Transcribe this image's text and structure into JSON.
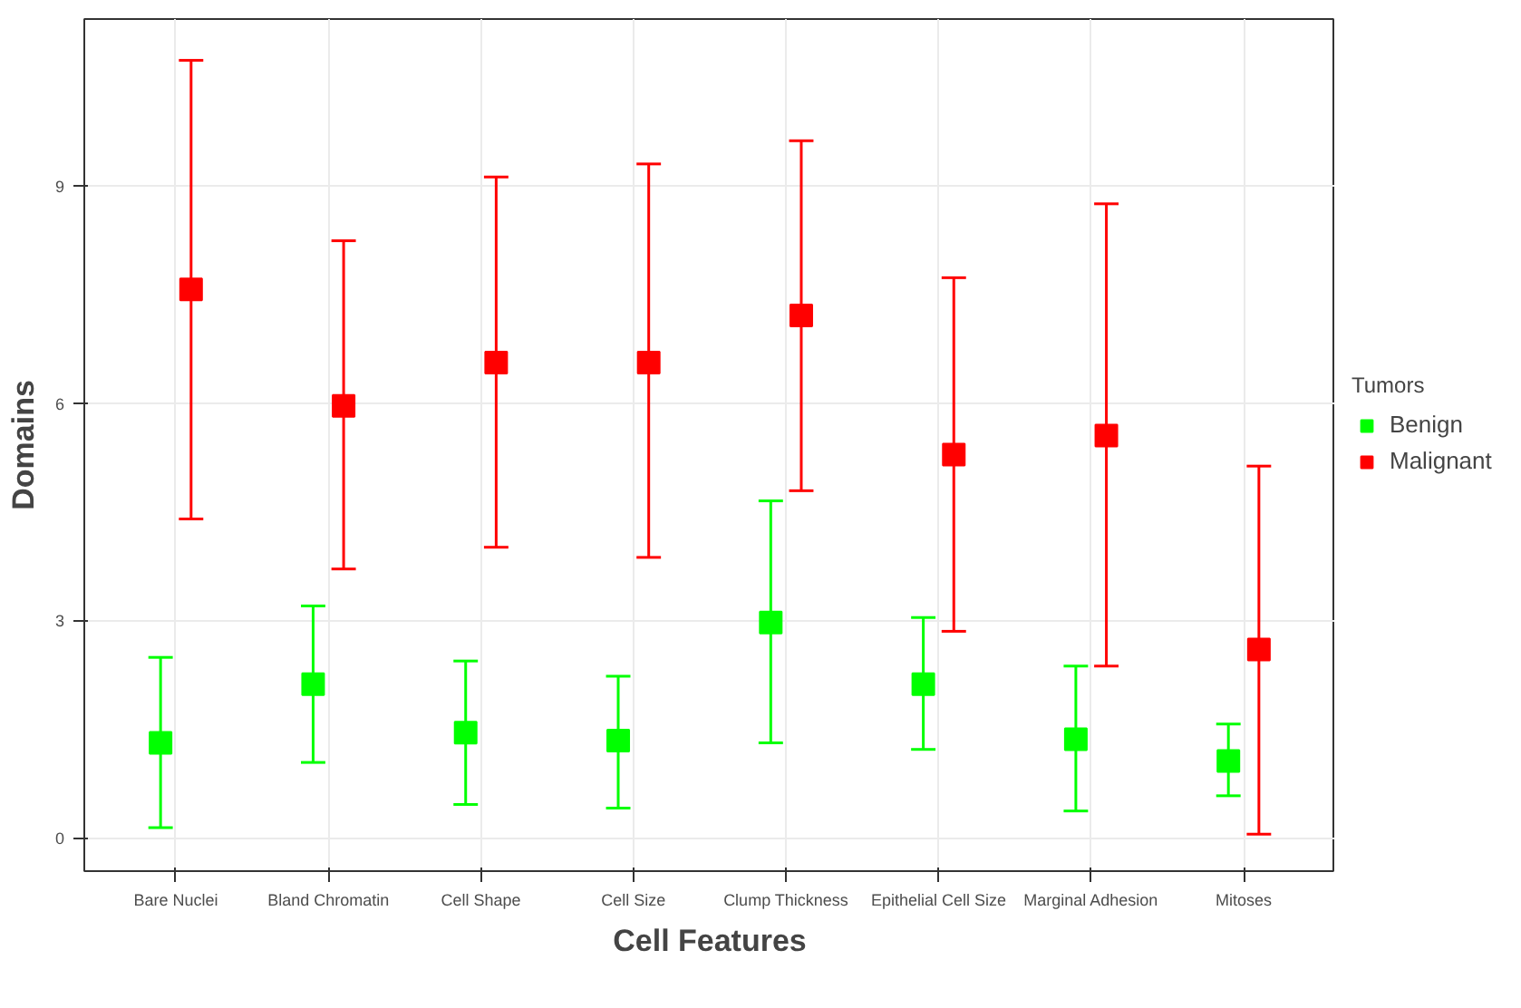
{
  "chart_data": {
    "type": "scatter",
    "xlabel": "Cell Features",
    "ylabel": "Domains",
    "legend_title": "Tumors",
    "categories": [
      "Bare Nuclei",
      "Bland Chromatin",
      "Cell Shape",
      "Cell Size",
      "Clump Thickness",
      "Epithelial Cell Size",
      "Marginal Adhesion",
      "Mitoses"
    ],
    "series": [
      {
        "name": "Benign",
        "color": "#00ff00",
        "values": [
          1.31,
          2.12,
          1.45,
          1.34,
          2.97,
          2.12,
          1.36,
          1.06
        ],
        "errors": [
          [
            0.14,
            2.49
          ],
          [
            1.04,
            3.2
          ],
          [
            0.46,
            2.44
          ],
          [
            0.41,
            2.23
          ],
          [
            1.31,
            4.65
          ],
          [
            1.22,
            3.04
          ],
          [
            0.37,
            2.37
          ],
          [
            0.58,
            1.57
          ]
        ]
      },
      {
        "name": "Malignant",
        "color": "#ff0000",
        "values": [
          7.57,
          5.96,
          6.56,
          6.56,
          7.21,
          5.29,
          5.55,
          2.6
        ],
        "errors": [
          [
            4.4,
            10.73
          ],
          [
            3.71,
            8.24
          ],
          [
            4.01,
            9.12
          ],
          [
            3.87,
            9.3
          ],
          [
            4.79,
            9.62
          ],
          [
            2.85,
            7.73
          ],
          [
            2.37,
            8.75
          ],
          [
            0.05,
            5.13
          ]
        ]
      }
    ],
    "ylim": [
      -0.46,
      11.3
    ],
    "yticks": [
      0,
      3,
      6,
      9
    ],
    "grid": true,
    "legend": "right",
    "marker": "square"
  }
}
